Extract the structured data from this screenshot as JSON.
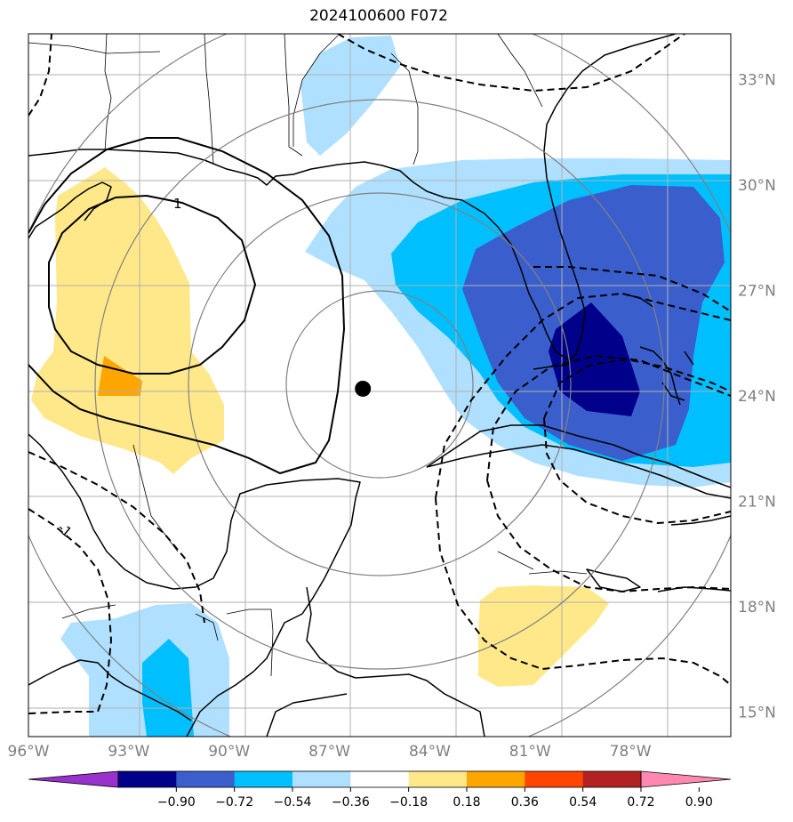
{
  "title": "2024100600 F072",
  "map": {
    "lon_range": [
      -96,
      -75
    ],
    "lat_range": [
      14.3,
      34.3
    ],
    "lat_ticks": [
      {
        "value": 15,
        "label": "15°N"
      },
      {
        "value": 18,
        "label": "18°N"
      },
      {
        "value": 21,
        "label": "21°N"
      },
      {
        "value": 24,
        "label": "24°N"
      },
      {
        "value": 27,
        "label": "27°N"
      },
      {
        "value": 30,
        "label": "30°N"
      },
      {
        "value": 33,
        "label": "33°N"
      }
    ],
    "lon_ticks": [
      {
        "value": -96,
        "label": "96°W"
      },
      {
        "value": -93,
        "label": "93°W"
      },
      {
        "value": -90,
        "label": "90°W"
      },
      {
        "value": -87,
        "label": "87°W"
      },
      {
        "value": -84,
        "label": "84°W"
      },
      {
        "value": -81,
        "label": "81°W"
      },
      {
        "value": -78,
        "label": "78°W"
      }
    ],
    "center_marker": {
      "lon": -86,
      "lat": 24.2
    },
    "contour_label": "1",
    "contour_label_neg": "-1"
  },
  "colorbar": {
    "colors": [
      "#9932cc",
      "#00008b",
      "#3a5fcd",
      "#00bfff",
      "#b0e0ff",
      "#ffffff",
      "#ffe88a",
      "#ffa500",
      "#ff4500",
      "#b22222",
      "#ff88b0"
    ],
    "labels": [
      "−0.90",
      "−0.72",
      "−0.54",
      "−0.36",
      "−0.18",
      "0.18",
      "0.36",
      "0.54",
      "0.72",
      "0.90"
    ]
  },
  "style": {
    "grid_color": "#b0b0b0",
    "ring_color": "#808080",
    "coast_color": "#000000",
    "label_color": "#808080"
  }
}
